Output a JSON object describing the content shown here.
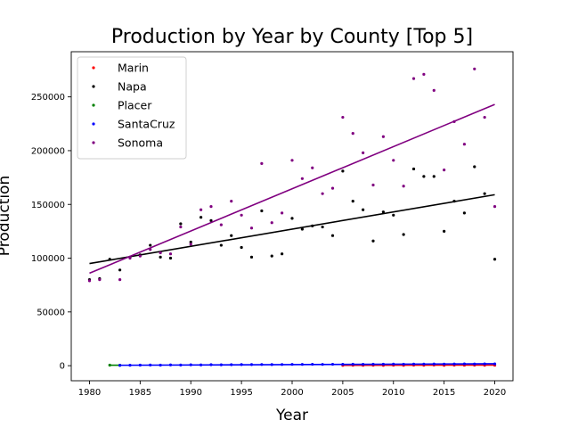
{
  "chart_data": {
    "type": "scatter",
    "title": "Production by Year by County [Top 5]",
    "xlabel": "Year",
    "ylabel": "Production",
    "xlim": [
      1978.2,
      2021.8
    ],
    "ylim": [
      -14000,
      292000
    ],
    "xticks": [
      1980,
      1985,
      1990,
      1995,
      2000,
      2005,
      2010,
      2015,
      2020
    ],
    "yticks": [
      0,
      50000,
      100000,
      150000,
      200000,
      250000
    ],
    "grid": false,
    "legend_position": "top-left",
    "series": [
      {
        "name": "Marin",
        "color": "#ff0000",
        "x": [
          2005,
          2006,
          2007,
          2008,
          2009,
          2010,
          2011,
          2012,
          2013,
          2014,
          2015,
          2016,
          2017,
          2018,
          2019,
          2020
        ],
        "y": [
          300,
          400,
          350,
          400,
          300,
          450,
          350,
          500,
          400,
          600,
          350,
          500,
          450,
          500,
          400,
          450
        ],
        "trend": [
          [
            2005,
            300
          ],
          [
            2020,
            600
          ]
        ]
      },
      {
        "name": "Napa",
        "color": "#000000",
        "x": [
          1980,
          1981,
          1982,
          1983,
          1984,
          1985,
          1986,
          1987,
          1988,
          1989,
          1990,
          1991,
          1992,
          1993,
          1994,
          1995,
          1996,
          1997,
          1998,
          1999,
          2000,
          2001,
          2002,
          2003,
          2004,
          2005,
          2006,
          2007,
          2008,
          2009,
          2010,
          2011,
          2012,
          2013,
          2014,
          2015,
          2016,
          2017,
          2018,
          2019,
          2020
        ],
        "y": [
          80000,
          81000,
          99000,
          89000,
          101000,
          103000,
          112000,
          101000,
          100000,
          132000,
          115000,
          138000,
          135000,
          112000,
          121000,
          110000,
          101000,
          144000,
          102000,
          104000,
          137000,
          127000,
          130000,
          129000,
          121000,
          181000,
          153000,
          145000,
          116000,
          143000,
          140000,
          122000,
          183000,
          176000,
          176000,
          125000,
          153000,
          142000,
          185000,
          160000,
          99000
        ],
        "trend": [
          [
            1980,
            95000
          ],
          [
            2020,
            159000
          ]
        ]
      },
      {
        "name": "Placer",
        "color": "#008000",
        "x": [
          1982,
          1983
        ],
        "y": [
          500,
          400
        ],
        "trend": [
          [
            1982,
            450
          ],
          [
            1983,
            450
          ]
        ]
      },
      {
        "name": "SantaCruz",
        "color": "#0000ff",
        "x": [
          1983,
          1984,
          1985,
          1986,
          1987,
          1988,
          1989,
          1990,
          1991,
          1992,
          1993,
          1994,
          1995,
          1996,
          1997,
          1998,
          1999,
          2000,
          2001,
          2002,
          2003,
          2004,
          2005,
          2006,
          2007,
          2008,
          2009,
          2010,
          2011,
          2012,
          2013,
          2014,
          2015,
          2016,
          2017,
          2018,
          2019,
          2020
        ],
        "y": [
          300,
          400,
          500,
          600,
          500,
          700,
          600,
          800,
          700,
          900,
          800,
          900,
          1000,
          1000,
          1100,
          1000,
          1100,
          1200,
          1200,
          1300,
          1200,
          1300,
          1300,
          1400,
          1300,
          1400,
          1400,
          1500,
          1400,
          1500,
          1500,
          1600,
          1500,
          1600,
          1700,
          1600,
          1700,
          1700
        ],
        "trend": [
          [
            1983,
            400
          ],
          [
            2020,
            1800
          ]
        ]
      },
      {
        "name": "Sonoma",
        "color": "#800080",
        "x": [
          1980,
          1981,
          1983,
          1984,
          1985,
          1986,
          1987,
          1988,
          1989,
          1990,
          1991,
          1992,
          1993,
          1994,
          1995,
          1996,
          1997,
          1998,
          1999,
          2000,
          2001,
          2002,
          2003,
          2004,
          2005,
          2006,
          2007,
          2008,
          2009,
          2010,
          2011,
          2012,
          2013,
          2014,
          2015,
          2016,
          2017,
          2018,
          2019,
          2020
        ],
        "y": [
          79000,
          80000,
          80000,
          100000,
          102000,
          108000,
          105000,
          104000,
          129000,
          113000,
          145000,
          148000,
          131000,
          153000,
          140000,
          128000,
          188000,
          133000,
          142000,
          191000,
          174000,
          184000,
          160000,
          165000,
          231000,
          216000,
          198000,
          168000,
          213000,
          191000,
          167000,
          267000,
          271000,
          256000,
          182000,
          227000,
          206000,
          276000,
          231000,
          148000
        ],
        "trend": [
          [
            1980,
            86000
          ],
          [
            2020,
            243000
          ]
        ]
      }
    ]
  }
}
